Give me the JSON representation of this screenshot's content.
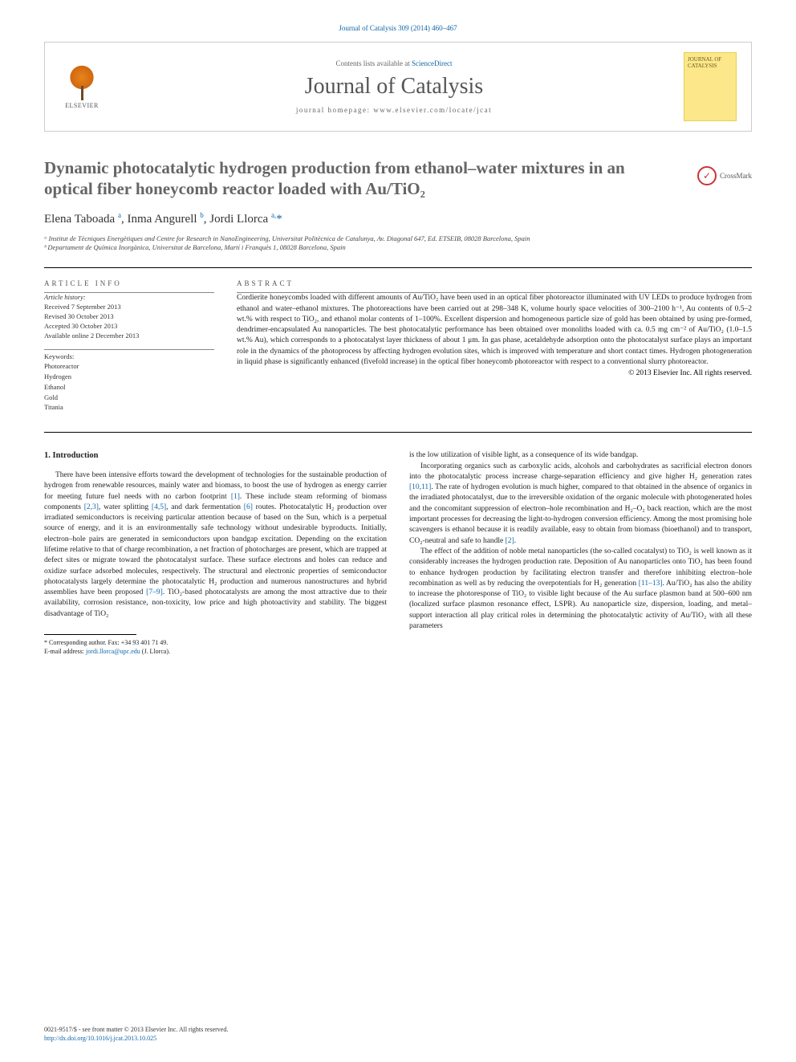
{
  "citation": "Journal of Catalysis 309 (2014) 460–467",
  "header": {
    "elsevier": "ELSEVIER",
    "contents_prefix": "Contents lists available at ",
    "contents_link": "ScienceDirect",
    "journal": "Journal of Catalysis",
    "homepage": "journal homepage: www.elsevier.com/locate/jcat",
    "cover_text": "JOURNAL OF CATALYSIS"
  },
  "crossmark": "CrossMark",
  "title": "Dynamic photocatalytic hydrogen production from ethanol–water mixtures in an optical fiber honeycomb reactor loaded with Au/TiO₂",
  "authors_html": "Elena Taboada <sup>a</sup>, Inma Angurell <sup>b</sup>, Jordi Llorca <sup>a,</sup><span class='star'>*</span>",
  "affiliations": {
    "a": "ᵃ Institut de Tècniques Energètiques and Centre for Research in NanoEngineering, Universitat Politècnica de Catalunya, Av. Diagonal 647, Ed. ETSEIB, 08028 Barcelona, Spain",
    "b": "ᵇ Departament de Química Inorgànica, Universitat de Barcelona, Martí i Franquès 1, 08028 Barcelona, Spain"
  },
  "info": {
    "label": "ARTICLE INFO",
    "history_label": "Article history:",
    "received": "Received 7 September 2013",
    "revised": "Revised 30 October 2013",
    "accepted": "Accepted 30 October 2013",
    "online": "Available online 2 December 2013",
    "keywords_label": "Keywords:",
    "keywords": [
      "Photoreactor",
      "Hydrogen",
      "Ethanol",
      "Gold",
      "Titania"
    ]
  },
  "abstract": {
    "label": "ABSTRACT",
    "text": "Cordierite honeycombs loaded with different amounts of Au/TiO₂ have been used in an optical fiber photoreactor illuminated with UV LEDs to produce hydrogen from ethanol and water–ethanol mixtures. The photoreactions have been carried out at 298–348 K, volume hourly space velocities of 300–2100 h⁻¹, Au contents of 0.5–2 wt.% with respect to TiO₂, and ethanol molar contents of 1–100%. Excellent dispersion and homogeneous particle size of gold has been obtained by using pre-formed, dendrimer-encapsulated Au nanoparticles. The best photocatalytic performance has been obtained over monoliths loaded with ca. 0.5 mg cm⁻² of Au/TiO₂ (1.0–1.5 wt.% Au), which corresponds to a photocatalyst layer thickness of about 1 μm. In gas phase, acetaldehyde adsorption onto the photocatalyst surface plays an important role in the dynamics of the photoprocess by affecting hydrogen evolution sites, which is improved with temperature and short contact times. Hydrogen photogeneration in liquid phase is significantly enhanced (fivefold increase) in the optical fiber honeycomb photoreactor with respect to a conventional slurry photoreactor.",
    "copyright": "© 2013 Elsevier Inc. All rights reserved."
  },
  "intro": {
    "heading": "1. Introduction",
    "p1_a": "There have been intensive efforts toward the development of technologies for the sustainable production of hydrogen from renewable resources, mainly water and biomass, to boost the use of hydrogen as energy carrier for meeting future fuel needs with no carbon footprint ",
    "r1": "[1]",
    "p1_b": ". These include steam reforming of biomass components ",
    "r23": "[2,3]",
    "p1_c": ", water splitting ",
    "r45": "[4,5]",
    "p1_d": ", and dark fermentation ",
    "r6": "[6]",
    "p1_e": " routes. Photocatalytic H₂ production over irradiated semiconductors is receiving particular attention because of based on the Sun, which is a perpetual source of energy, and it is an environmentally safe technology without undesirable byproducts. Initially, electron–hole pairs are generated in semiconductors upon bandgap excitation. Depending on the excitation lifetime relative to that of charge recombination, a net fraction of photocharges are present, which are trapped at defect sites or migrate toward the photocatalyst surface. These surface electrons and holes can reduce and oxidize surface adsorbed molecules, respectively. The structural and electronic properties of semiconductor photocatalysts largely determine the photocatalytic H₂ production and numerous nanostructures and hybrid assemblies have been proposed ",
    "r79": "[7–9]",
    "p1_f": ". TiO₂-based photocatalysts are among the most attractive due to their availability, corrosion resistance, non-toxicity, low price and high photoactivity and stability. The biggest disadvantage of TiO₂",
    "p2_a": "is the low utilization of visible light, as a consequence of its wide bandgap.",
    "p3_a": "Incorporating organics such as carboxylic acids, alcohols and carbohydrates as sacrificial electron donors into the photocatalytic process increase charge-separation efficiency and give higher H₂ generation rates ",
    "r1011": "[10,11]",
    "p3_b": ". The rate of hydrogen evolution is much higher, compared to that obtained in the absence of organics in the irradiated photocatalyst, due to the irreversible oxidation of the organic molecule with photogenerated holes and the concomitant suppression of electron–hole recombination and H₂–O₂ back reaction, which are the most important processes for decreasing the light-to-hydrogen conversion efficiency. Among the most promising hole scavengers is ethanol because it is readily available, easy to obtain from biomass (bioethanol) and to transport, CO₂-neutral and safe to handle ",
    "r2": "[2]",
    "p3_c": ".",
    "p4_a": "The effect of the addition of noble metal nanoparticles (the so-called cocatalyst) to TiO₂ is well known as it considerably increases the hydrogen production rate. Deposition of Au nanoparticles onto TiO₂ has been found to enhance hydrogen production by facilitating electron transfer and therefore inhibiting electron–hole recombination as well as by reducing the overpotentials for H₂ generation ",
    "r1113": "[11–13]",
    "p4_b": ". Au/TiO₂ has also the ability to increase the photoresponse of TiO₂ to visible light because of the Au surface plasmon band at 500–600 nm (localized surface plasmon resonance effect, LSPR). Au nanoparticle size, dispersion, loading, and metal–support interaction all play critical roles in determining the photocatalytic activity of Au/TiO₂ with all these parameters"
  },
  "corresponding": {
    "line1": "* Corresponding author. Fax: +34 93 401 71 49.",
    "email_label": "E-mail address: ",
    "email": "jordi.llorca@upc.edu",
    "email_suffix": " (J. Llorca)."
  },
  "footer": {
    "line1": "0021-9517/$ - see front matter © 2013 Elsevier Inc. All rights reserved.",
    "doi": "http://dx.doi.org/10.1016/j.jcat.2013.10.025"
  },
  "colors": {
    "link": "#1066a8",
    "title_gray": "#656565",
    "text": "#222222",
    "cover_bg": "#fce88a"
  }
}
